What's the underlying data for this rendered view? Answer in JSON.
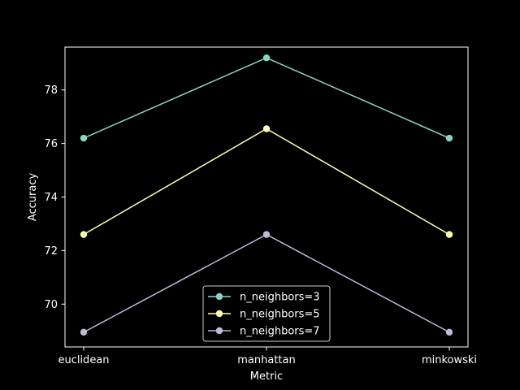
{
  "chart_data": {
    "type": "line",
    "categories": [
      "euclidean",
      "manhattan",
      "minkowski"
    ],
    "xlabel": "Metric",
    "ylabel": "Accuracy",
    "ylim": [
      68.4,
      79.6
    ],
    "yticks": [
      70,
      72,
      74,
      76,
      78
    ],
    "grid": false,
    "legend_position": "bottom-center",
    "series": [
      {
        "name": "n_neighbors=3",
        "values": [
          76.2,
          79.2,
          76.2
        ],
        "color": "#8dd3c7"
      },
      {
        "name": "n_neighbors=5",
        "values": [
          72.6,
          76.55,
          72.6
        ],
        "color": "#ffffb3"
      },
      {
        "name": "n_neighbors=7",
        "values": [
          68.95,
          72.6,
          68.95
        ],
        "color": "#bebada"
      }
    ]
  }
}
